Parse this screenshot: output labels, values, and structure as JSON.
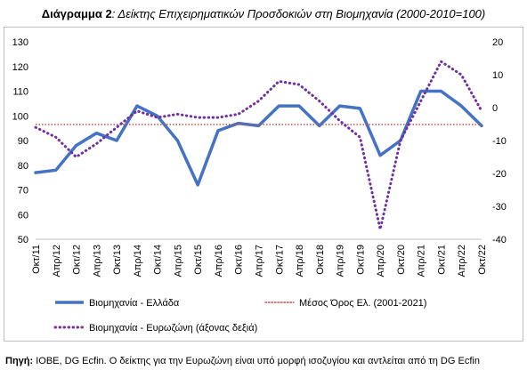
{
  "title": {
    "bold": "Διάγραμμα 2",
    "rest": ": Δείκτης Επιχειρηματικών Προσδοκιών στη Βιομηχανία (2000-2010=100)"
  },
  "source": {
    "label": "Πηγή:",
    "text": " ΙΟΒΕ, DG Ecfin. Ο δείκτης για την Ευρωζώνη είναι υπό μορφή ισοζυγίου και αντλείται από τη DG Ecfin"
  },
  "chart_data": {
    "type": "line",
    "ylim": [
      50,
      130
    ],
    "y2lim": [
      -40,
      20
    ],
    "yticks": [
      50,
      60,
      70,
      80,
      90,
      100,
      110,
      120,
      130
    ],
    "y2ticks": [
      -40,
      -30,
      -20,
      -10,
      0,
      10,
      20
    ],
    "xticks": [
      "Οκτ/11",
      "Απρ/12",
      "Οκτ/12",
      "Απρ/13",
      "Οκτ/13",
      "Απρ/14",
      "Οκτ/14",
      "Απρ/15",
      "Οκτ/15",
      "Απρ/16",
      "Οκτ/16",
      "Απρ/17",
      "Οκτ/17",
      "Απρ/18",
      "Οκτ/18",
      "Απρ/19",
      "Οκτ/19",
      "Απρ/20",
      "Οκτ/20",
      "Απρ/21",
      "Οκτ/21",
      "Απρ/22",
      "Οκτ/22"
    ],
    "series": [
      {
        "name": "Βιομηχανία  - Ελλάδα",
        "axis": "left",
        "color": "#4472c4",
        "style": "solid",
        "x": [
          "Οκτ/11",
          "Απρ/12",
          "Οκτ/12",
          "Απρ/13",
          "Οκτ/13",
          "Απρ/14",
          "Οκτ/14",
          "Απρ/15",
          "Οκτ/15",
          "Απρ/16",
          "Οκτ/16",
          "Απρ/17",
          "Οκτ/17",
          "Απρ/18",
          "Οκτ/18",
          "Απρ/19",
          "Οκτ/19",
          "Απρ/20",
          "Οκτ/20",
          "Απρ/21",
          "Οκτ/21",
          "Απρ/22",
          "Οκτ/22"
        ],
        "values": [
          77,
          78,
          88,
          93,
          90,
          104,
          100,
          90,
          72,
          94,
          97,
          96,
          104,
          104,
          96,
          104,
          103,
          84,
          90,
          110,
          110,
          104,
          96
        ]
      },
      {
        "name": "Μέσος Όρος Ελ. (2001-2021)",
        "axis": "left",
        "color": "#c0504d",
        "style": "dotted",
        "value": 96.5
      },
      {
        "name": "Βιομηχανία - Ευρωζώνη (άξονας δεξιά)",
        "axis": "right",
        "color": "#7030a0",
        "style": "dotted",
        "x": [
          "Οκτ/11",
          "Απρ/12",
          "Οκτ/12",
          "Απρ/13",
          "Οκτ/13",
          "Απρ/14",
          "Οκτ/14",
          "Απρ/15",
          "Οκτ/15",
          "Απρ/16",
          "Οκτ/16",
          "Απρ/17",
          "Οκτ/17",
          "Απρ/18",
          "Οκτ/18",
          "Απρ/19",
          "Οκτ/19",
          "Απρ/20",
          "Οκτ/20",
          "Απρ/21",
          "Οκτ/21",
          "Απρ/22",
          "Οκτ/22"
        ],
        "values": [
          -6,
          -9,
          -15,
          -11,
          -6,
          -1,
          -3,
          -2,
          -3,
          -3,
          -2,
          2,
          8,
          7,
          2,
          -4,
          -9,
          -37,
          -10,
          2,
          14,
          10,
          -1
        ]
      }
    ],
    "legend": "bottom"
  }
}
